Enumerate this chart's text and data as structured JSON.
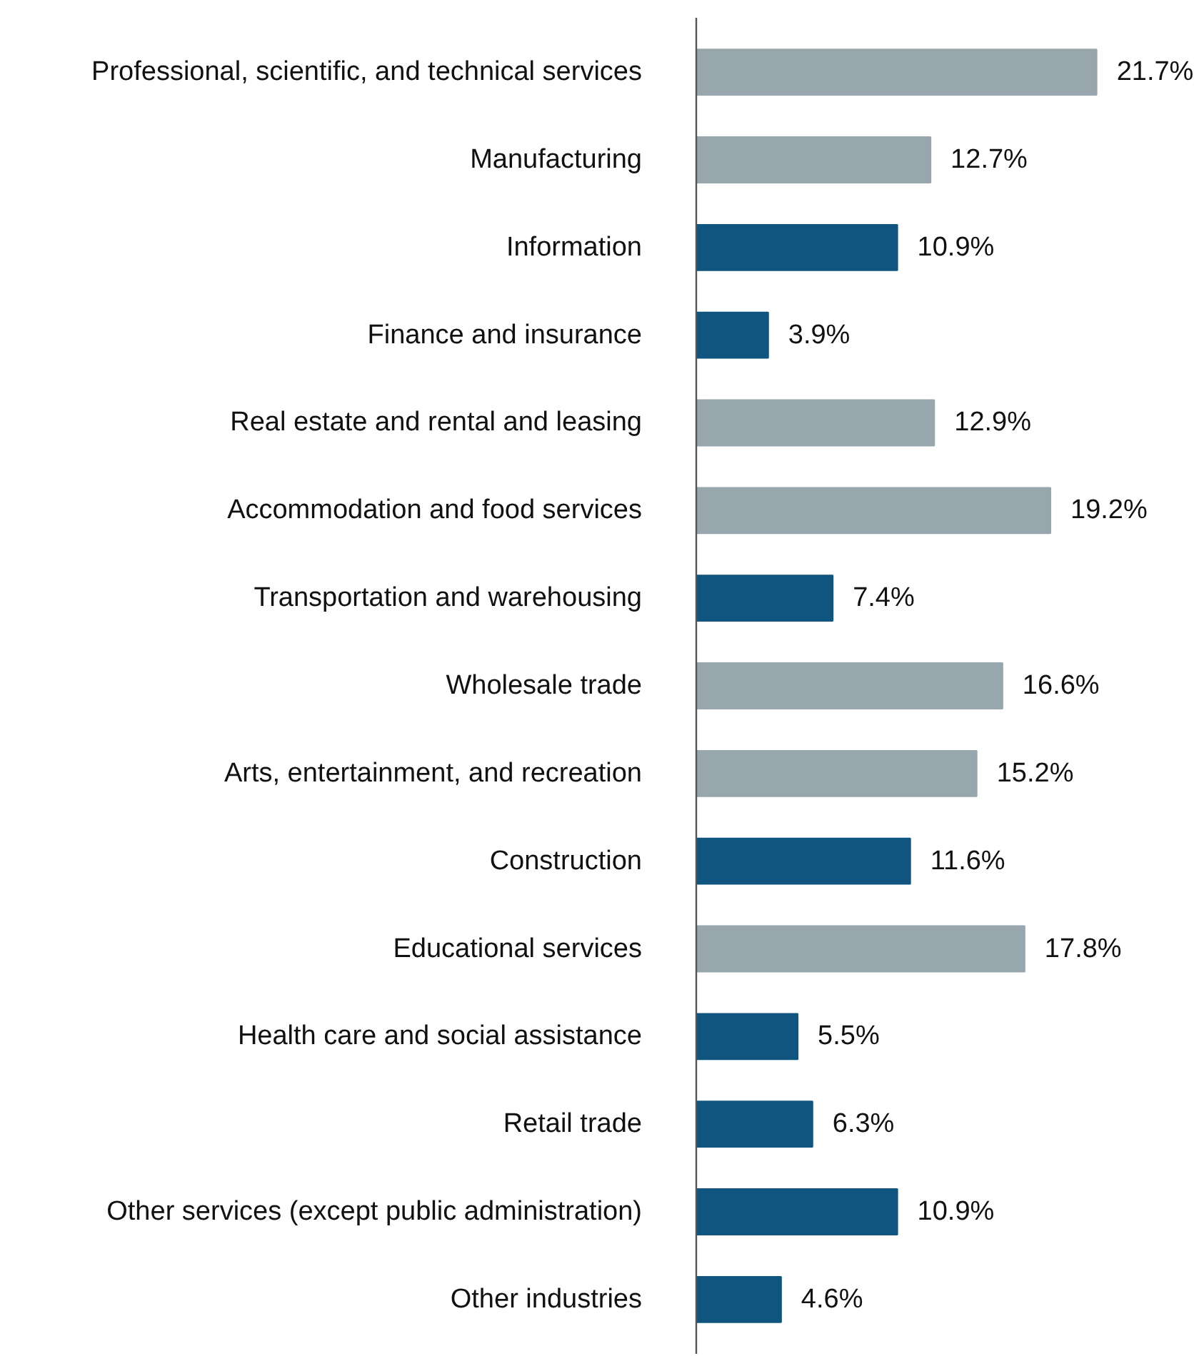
{
  "chart_data": {
    "type": "bar",
    "orientation": "horizontal",
    "categories": [
      "Professional, scientific, and technical services",
      "Manufacturing",
      "Information",
      "Finance and insurance",
      "Real estate and rental and leasing",
      "Accommodation and food services",
      "Transportation and warehousing",
      "Wholesale trade",
      "Arts, entertainment, and recreation",
      "Construction",
      "Educational services",
      "Health care and social assistance",
      "Retail trade",
      "Other services (except public administration)",
      "Other industries"
    ],
    "values": [
      21.7,
      12.7,
      10.9,
      3.9,
      12.9,
      19.2,
      7.4,
      16.6,
      15.2,
      11.6,
      17.8,
      5.5,
      6.3,
      10.9,
      4.6
    ],
    "value_labels": [
      "21.7%",
      "12.7%",
      "10.9%",
      "3.9%",
      "12.9%",
      "19.2%",
      "7.4%",
      "16.6%",
      "15.2%",
      "11.6%",
      "17.8%",
      "5.5%",
      "6.3%",
      "10.9%",
      "4.6%"
    ],
    "colors": [
      "#98a6ad",
      "#98a6ad",
      "#0f557f",
      "#0f557f",
      "#98a6ad",
      "#98a6ad",
      "#0f557f",
      "#98a6ad",
      "#98a6ad",
      "#0f557f",
      "#98a6ad",
      "#0f557f",
      "#0f557f",
      "#0f557f",
      "#0f557f"
    ],
    "grid": false
  }
}
